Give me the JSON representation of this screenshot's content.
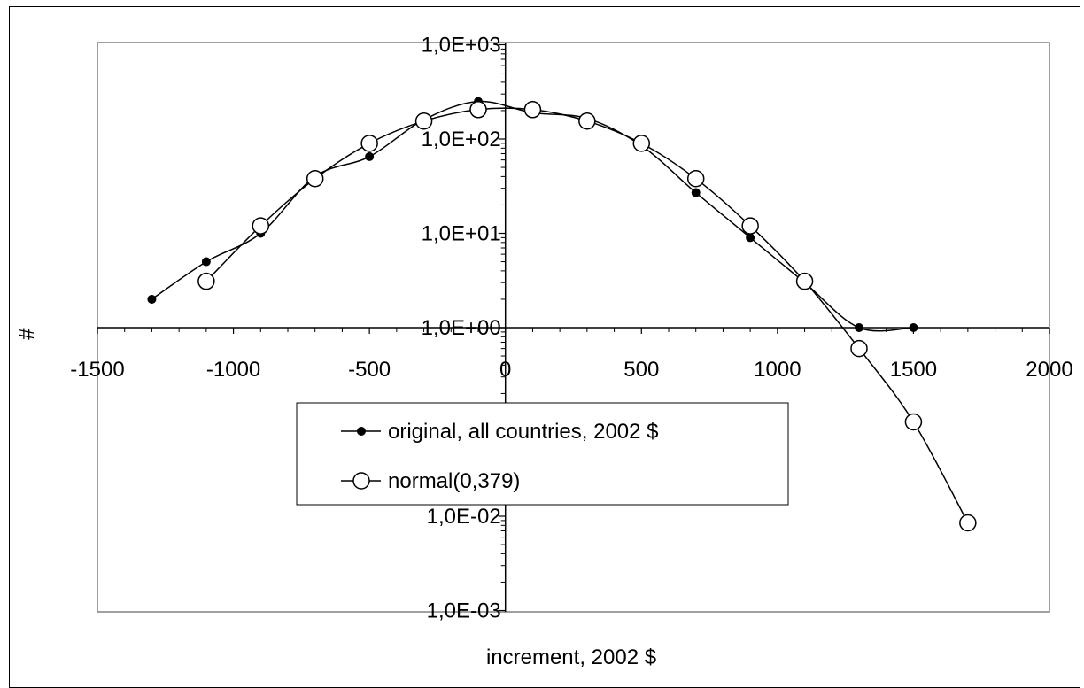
{
  "chart_data": {
    "type": "line",
    "title": "",
    "xlabel": "increment, 2002 $",
    "ylabel": "#",
    "xlim": [
      -1500,
      2000
    ],
    "ylim": [
      0.001,
      1000
    ],
    "yscale": "log",
    "x_ticks": [
      -1500,
      -1000,
      -500,
      0,
      500,
      1000,
      1500,
      2000
    ],
    "x_tick_labels": [
      "-1500",
      "-1000",
      "-500",
      "0",
      "500",
      "1000",
      "1500",
      "2000"
    ],
    "y_ticks": [
      1000,
      100,
      10,
      1,
      0.01,
      0.001
    ],
    "y_tick_labels": [
      "1,0E+03",
      "1,0E+02",
      "1,0E+01",
      "1,0E+00",
      "1,0E-02",
      "1,0E-03"
    ],
    "grid": false,
    "legend_position": "center",
    "series": [
      {
        "name": "original, all countries, 2002 $",
        "marker": "filled-circle",
        "color": "#000000",
        "x": [
          -1300,
          -1100,
          -900,
          -700,
          -500,
          -300,
          -100,
          100,
          300,
          500,
          700,
          900,
          1100,
          1300,
          1500
        ],
        "y": [
          2,
          5,
          10,
          40,
          65,
          160,
          250,
          190,
          165,
          85,
          27,
          9,
          3,
          1,
          1
        ]
      },
      {
        "name": "normal(0,379)",
        "marker": "open-circle",
        "color": "#000000",
        "x": [
          -1100,
          -900,
          -700,
          -500,
          -300,
          -100,
          100,
          300,
          500,
          700,
          900,
          1100,
          1300,
          1500,
          1700
        ],
        "y": [
          3.1,
          12,
          38,
          90,
          155,
          205,
          205,
          155,
          90,
          38,
          12,
          3.1,
          0.6,
          0.1,
          0.0085
        ]
      }
    ]
  }
}
